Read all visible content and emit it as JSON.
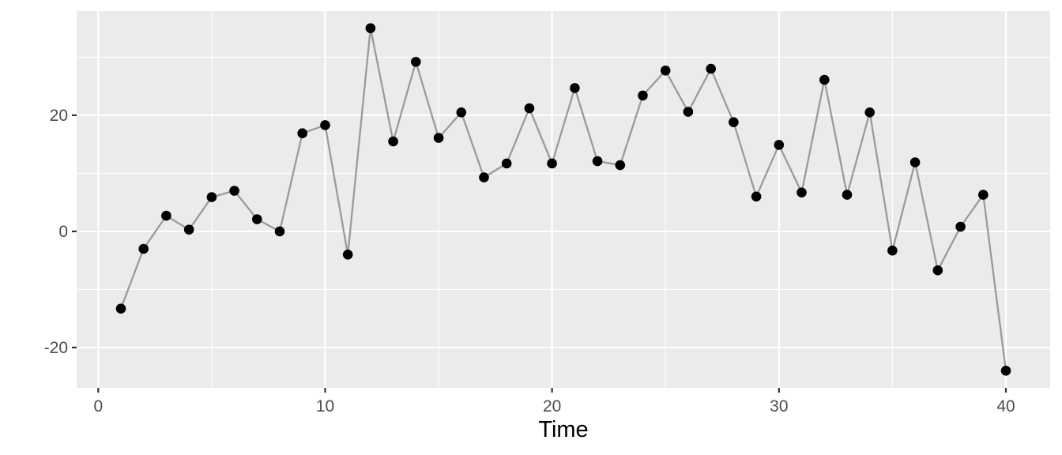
{
  "chart_data": {
    "type": "line",
    "title": "",
    "xlabel": "Time",
    "ylabel": "",
    "legend": "none",
    "grid": "on",
    "x": [
      1,
      2,
      3,
      4,
      5,
      6,
      7,
      8,
      9,
      10,
      11,
      12,
      13,
      14,
      15,
      16,
      17,
      18,
      19,
      20,
      21,
      22,
      23,
      24,
      25,
      26,
      27,
      28,
      29,
      30,
      31,
      32,
      33,
      34,
      35,
      36,
      37,
      38,
      39,
      40
    ],
    "y": [
      -13.3,
      -3.0,
      2.7,
      0.3,
      5.9,
      7.0,
      2.1,
      0.0,
      16.9,
      18.3,
      -4.0,
      35.0,
      15.5,
      29.2,
      16.1,
      20.5,
      9.3,
      11.7,
      21.2,
      11.7,
      24.7,
      12.1,
      11.4,
      23.4,
      27.7,
      20.6,
      28.0,
      18.8,
      6.0,
      14.9,
      6.7,
      26.1,
      6.3,
      20.5,
      -3.3,
      11.9,
      -6.7,
      0.8,
      6.3,
      -24.0
    ],
    "xlim": [
      -0.95,
      41.95
    ],
    "ylim": [
      -26.95,
      37.95
    ],
    "x_major_ticks": [
      0,
      10,
      20,
      30,
      40
    ],
    "x_major_labels": [
      "0",
      "10",
      "20",
      "30",
      "40"
    ],
    "x_minor_ticks": [
      5,
      15,
      25,
      35
    ],
    "y_major_ticks": [
      -20,
      0,
      20
    ],
    "y_major_labels": [
      "-20",
      "0",
      "20"
    ],
    "y_minor_ticks": [
      -10,
      10,
      30
    ],
    "colors": {
      "panel_background": "#EBEBEB",
      "gridline": "#FFFFFF",
      "series_line": "#9A9A9A",
      "point_fill": "#000000",
      "tick_mark": "#333333",
      "axis_text": "#4D4D4D",
      "axis_title": "#000000"
    }
  }
}
